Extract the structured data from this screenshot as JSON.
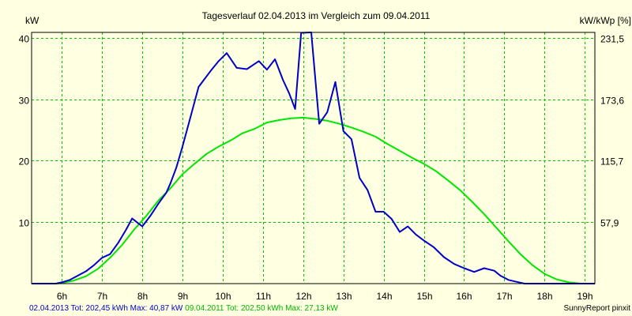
{
  "chart_data": {
    "type": "line",
    "title": "Tagesverlauf 02.04.2013 im Vergleich zum 09.04.2011",
    "ylabel_left": "kW",
    "ylabel_right": "kW/kWp [%]",
    "x_ticks": [
      "6h",
      "7h",
      "8h",
      "9h",
      "10h",
      "11h",
      "12h",
      "13h",
      "14h",
      "15h",
      "16h",
      "17h",
      "18h",
      "19h"
    ],
    "xlim": [
      5.25,
      19.25
    ],
    "ylim": [
      0,
      40.87
    ],
    "y_ticks_left": [
      "10",
      "20",
      "30",
      "40"
    ],
    "y_ticks_right": [
      "57,9",
      "115,7",
      "173,6",
      "231,5"
    ],
    "grid": true,
    "series": [
      {
        "name": "02.04.2013",
        "color": "#0000c8",
        "x": [
          5.25,
          5.85,
          6.0,
          6.2,
          6.4,
          6.6,
          6.8,
          7.0,
          7.2,
          7.4,
          7.6,
          7.75,
          7.9,
          8.0,
          8.2,
          8.4,
          8.6,
          8.7,
          8.85,
          9.0,
          9.15,
          9.4,
          9.7,
          9.9,
          10.1,
          10.35,
          10.6,
          10.9,
          11.1,
          11.3,
          11.5,
          11.65,
          11.8,
          11.95,
          12.2,
          12.4,
          12.6,
          12.8,
          13.0,
          13.2,
          13.4,
          13.6,
          13.8,
          14.0,
          14.2,
          14.4,
          14.6,
          14.8,
          15.0,
          15.25,
          15.5,
          15.75,
          16.0,
          16.25,
          16.5,
          16.75,
          16.9,
          17.1,
          17.3,
          17.5,
          17.7,
          17.9,
          18.1,
          18.3,
          18.5,
          19.25
        ],
        "y": [
          0,
          0,
          0.2,
          0.6,
          1.3,
          2.0,
          3.0,
          4.2,
          4.8,
          6.6,
          8.8,
          10.6,
          9.8,
          9.3,
          11.0,
          13.0,
          14.8,
          16.3,
          18.9,
          22.3,
          25.9,
          32.0,
          34.6,
          36.2,
          37.5,
          35.1,
          34.9,
          36.2,
          34.8,
          36.5,
          33.1,
          31.0,
          28.4,
          40.8,
          40.87,
          26.0,
          27.9,
          32.8,
          24.8,
          23.5,
          17.2,
          15.2,
          11.7,
          11.7,
          10.5,
          8.4,
          9.3,
          8.0,
          7.0,
          5.9,
          4.3,
          3.2,
          2.5,
          1.9,
          2.5,
          2.1,
          1.3,
          0.6,
          0.3,
          0,
          0,
          0,
          0,
          0,
          0,
          0
        ]
      },
      {
        "name": "09.04.2011",
        "color": "#00e600",
        "x": [
          5.25,
          5.9,
          6.0,
          6.3,
          6.6,
          6.9,
          7.2,
          7.5,
          7.8,
          8.1,
          8.4,
          8.7,
          9.0,
          9.3,
          9.6,
          9.9,
          10.2,
          10.5,
          10.8,
          11.1,
          11.4,
          11.7,
          12.0,
          12.3,
          12.6,
          12.9,
          13.2,
          13.5,
          13.8,
          14.1,
          14.4,
          14.7,
          15.0,
          15.3,
          15.6,
          15.9,
          16.2,
          16.5,
          16.8,
          17.1,
          17.4,
          17.7,
          18.0,
          18.3,
          18.6,
          18.9,
          19.25
        ],
        "y": [
          0,
          0,
          0.1,
          0.5,
          1.2,
          2.4,
          4.2,
          6.3,
          8.8,
          11.0,
          13.5,
          15.5,
          17.8,
          19.5,
          21.1,
          22.3,
          23.3,
          24.5,
          25.2,
          26.2,
          26.6,
          26.9,
          27.0,
          26.8,
          26.5,
          26.0,
          25.4,
          24.7,
          23.9,
          22.7,
          21.6,
          20.5,
          19.5,
          18.3,
          16.8,
          15.2,
          13.3,
          11.3,
          9.1,
          6.9,
          4.8,
          3.0,
          1.6,
          0.7,
          0.2,
          0,
          0
        ]
      }
    ],
    "footer_left": "02.04.2013 Tot: 202,45 kWh Max: 40,87 kW 09.04.2011 Tot: 202,50 kWh Max: 27,13 kW",
    "footer_right": "SunnyReport pinxit"
  }
}
